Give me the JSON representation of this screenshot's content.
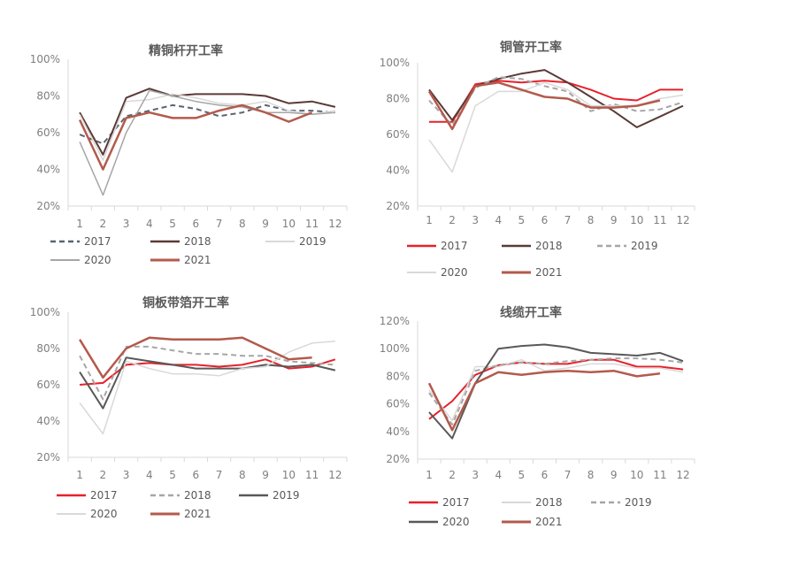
{
  "chart_data": [
    {
      "type": "line",
      "title": "精铜杆开工率",
      "categories": [
        "1",
        "2",
        "3",
        "4",
        "5",
        "6",
        "7",
        "8",
        "9",
        "10",
        "11",
        "12"
      ],
      "ylim": [
        0.2,
        1.0
      ],
      "yticks": [
        "20%",
        "40%",
        "60%",
        "80%",
        "100%"
      ],
      "grid": false,
      "legend": "bottom",
      "series": [
        {
          "name": "2017",
          "color": "#5b6470",
          "dash": true,
          "width": 2,
          "values": [
            0.59,
            0.54,
            0.69,
            0.72,
            0.75,
            0.73,
            0.69,
            0.71,
            0.75,
            0.72,
            0.72,
            0.71
          ]
        },
        {
          "name": "2018",
          "color": "#5a3a36",
          "dash": false,
          "width": 2,
          "values": [
            0.71,
            0.48,
            0.79,
            0.84,
            0.8,
            0.81,
            0.81,
            0.81,
            0.8,
            0.76,
            0.77,
            0.74
          ]
        },
        {
          "name": "2019",
          "color": "#d9d9d9",
          "dash": false,
          "width": 1.5,
          "values": [
            0.7,
            0.45,
            0.77,
            0.78,
            0.81,
            0.79,
            0.76,
            0.75,
            0.77,
            0.72,
            0.7,
            0.72
          ]
        },
        {
          "name": "2020",
          "color": "#a6a6a6",
          "dash": false,
          "width": 1.5,
          "values": [
            0.55,
            0.26,
            0.6,
            0.83,
            0.8,
            0.77,
            0.75,
            0.74,
            0.71,
            0.71,
            0.7,
            0.71
          ]
        },
        {
          "name": "2021",
          "color": "#b35a4c",
          "dash": false,
          "width": 2.5,
          "values": [
            0.67,
            0.4,
            0.68,
            0.71,
            0.68,
            0.68,
            0.72,
            0.75,
            0.71,
            0.66,
            0.71,
            null
          ]
        }
      ]
    },
    {
      "type": "line",
      "title": "铜管开工率",
      "categories": [
        "1",
        "2",
        "3",
        "4",
        "5",
        "6",
        "7",
        "8",
        "9",
        "10",
        "11",
        "12"
      ],
      "ylim": [
        0.2,
        1.0
      ],
      "yticks": [
        "20%",
        "40%",
        "60%",
        "80%",
        "100%"
      ],
      "grid": false,
      "legend": "bottom",
      "series": [
        {
          "name": "2017",
          "color": "#e8202a",
          "dash": false,
          "width": 2,
          "values": [
            0.67,
            0.67,
            0.88,
            0.9,
            0.89,
            0.9,
            0.89,
            0.85,
            0.8,
            0.79,
            0.85,
            0.85
          ]
        },
        {
          "name": "2018",
          "color": "#5a3a36",
          "dash": false,
          "width": 2,
          "values": [
            0.85,
            0.68,
            0.87,
            0.91,
            0.94,
            0.96,
            0.89,
            0.81,
            0.73,
            0.64,
            0.7,
            0.76
          ]
        },
        {
          "name": "2019",
          "color": "#a6a6a6",
          "dash": true,
          "width": 2,
          "values": [
            0.79,
            0.65,
            0.86,
            0.92,
            0.91,
            0.87,
            0.84,
            0.73,
            0.77,
            0.73,
            0.74,
            0.78
          ]
        },
        {
          "name": "2020",
          "color": "#d9d9d9",
          "dash": false,
          "width": 1.5,
          "values": [
            0.57,
            0.39,
            0.76,
            0.84,
            0.84,
            0.89,
            0.85,
            0.76,
            0.76,
            0.76,
            0.8,
            0.82
          ]
        },
        {
          "name": "2021",
          "color": "#b35a4c",
          "dash": false,
          "width": 2.5,
          "values": [
            0.84,
            0.63,
            0.87,
            0.89,
            0.85,
            0.81,
            0.8,
            0.75,
            0.75,
            0.76,
            0.79,
            null
          ]
        }
      ]
    },
    {
      "type": "line",
      "title": "铜板带箔开工率",
      "categories": [
        "1",
        "2",
        "3",
        "4",
        "5",
        "6",
        "7",
        "8",
        "9",
        "10",
        "11",
        "12"
      ],
      "ylim": [
        0.2,
        1.0
      ],
      "yticks": [
        "20%",
        "40%",
        "60%",
        "80%",
        "100%"
      ],
      "grid": false,
      "legend": "bottom",
      "series": [
        {
          "name": "2017",
          "color": "#e8202a",
          "dash": false,
          "width": 2,
          "values": [
            0.6,
            0.61,
            0.71,
            0.72,
            0.71,
            0.71,
            0.7,
            0.71,
            0.74,
            0.69,
            0.7,
            0.74
          ]
        },
        {
          "name": "2018",
          "color": "#a6a6a6",
          "dash": true,
          "width": 2,
          "values": [
            0.76,
            0.52,
            0.81,
            0.81,
            0.79,
            0.77,
            0.77,
            0.76,
            0.76,
            0.73,
            0.72,
            0.71
          ]
        },
        {
          "name": "2019",
          "color": "#595959",
          "dash": false,
          "width": 2,
          "values": [
            0.67,
            0.47,
            0.75,
            0.73,
            0.71,
            0.69,
            0.69,
            0.69,
            0.71,
            0.7,
            0.71,
            0.68
          ]
        },
        {
          "name": "2020",
          "color": "#d9d9d9",
          "dash": false,
          "width": 1.5,
          "values": [
            0.5,
            0.33,
            0.73,
            0.69,
            0.66,
            0.66,
            0.65,
            0.69,
            0.7,
            0.78,
            0.83,
            0.84
          ]
        },
        {
          "name": "2021",
          "color": "#b35a4c",
          "dash": false,
          "width": 2.5,
          "values": [
            0.85,
            0.64,
            0.8,
            0.86,
            0.85,
            0.85,
            0.85,
            0.86,
            0.8,
            0.74,
            0.75,
            null
          ]
        }
      ]
    },
    {
      "type": "line",
      "title": "线缆开工率",
      "categories": [
        "1",
        "2",
        "3",
        "4",
        "5",
        "6",
        "7",
        "8",
        "9",
        "10",
        "11",
        "12"
      ],
      "ylim": [
        0.2,
        1.2
      ],
      "yticks": [
        "20%",
        "40%",
        "60%",
        "80%",
        "100%",
        "120%"
      ],
      "grid": false,
      "legend": "bottom",
      "series": [
        {
          "name": "2017",
          "color": "#e8202a",
          "dash": false,
          "width": 2,
          "values": [
            0.49,
            0.62,
            0.81,
            0.88,
            0.9,
            0.89,
            0.89,
            0.92,
            0.92,
            0.87,
            0.87,
            0.85
          ]
        },
        {
          "name": "2018",
          "color": "#d9d9d9",
          "dash": false,
          "width": 1.5,
          "values": [
            0.7,
            0.48,
            0.87,
            0.87,
            0.92,
            0.84,
            0.86,
            0.89,
            0.89,
            0.86,
            0.86,
            0.83
          ]
        },
        {
          "name": "2019",
          "color": "#a6a6a6",
          "dash": true,
          "width": 2,
          "values": [
            0.68,
            0.45,
            0.84,
            0.88,
            0.9,
            0.89,
            0.91,
            0.92,
            0.93,
            0.93,
            0.92,
            0.9
          ]
        },
        {
          "name": "2020",
          "color": "#595959",
          "dash": false,
          "width": 2,
          "values": [
            0.54,
            0.35,
            0.75,
            1.0,
            1.02,
            1.03,
            1.01,
            0.97,
            0.96,
            0.95,
            0.97,
            0.91
          ]
        },
        {
          "name": "2021",
          "color": "#b35a4c",
          "dash": false,
          "width": 2.5,
          "values": [
            0.75,
            0.41,
            0.75,
            0.83,
            0.81,
            0.83,
            0.84,
            0.83,
            0.84,
            0.8,
            0.82,
            null
          ]
        }
      ]
    }
  ]
}
